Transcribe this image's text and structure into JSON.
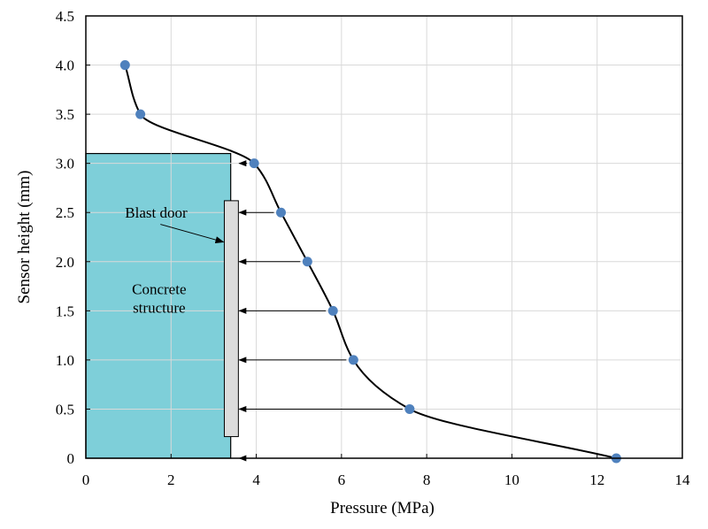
{
  "chart_data": {
    "type": "line",
    "title": "",
    "xlabel": "Pressure (MPa)",
    "ylabel": "Sensor height (mm)",
    "xlim": [
      0,
      14
    ],
    "ylim": [
      0,
      4.5
    ],
    "x_ticks": [
      {
        "value": 0,
        "label": "0"
      },
      {
        "value": 2,
        "label": "2"
      },
      {
        "value": 4,
        "label": "4"
      },
      {
        "value": 6,
        "label": "6"
      },
      {
        "value": 8,
        "label": "8"
      },
      {
        "value": 10,
        "label": "10"
      },
      {
        "value": 12,
        "label": "12"
      },
      {
        "value": 14,
        "label": "14"
      }
    ],
    "y_ticks": [
      {
        "value": 0,
        "label": "0"
      },
      {
        "value": 0.5,
        "label": "0.5"
      },
      {
        "value": 1.0,
        "label": "1.0"
      },
      {
        "value": 1.5,
        "label": "1.5"
      },
      {
        "value": 2.0,
        "label": "2.0"
      },
      {
        "value": 2.5,
        "label": "2.5"
      },
      {
        "value": 3.0,
        "label": "3.0"
      },
      {
        "value": 3.5,
        "label": "3.5"
      },
      {
        "value": 4.0,
        "label": "4.0"
      },
      {
        "value": 4.5,
        "label": "4.5"
      }
    ],
    "grid": true,
    "series": [
      {
        "color": "#4f81bd",
        "points": [
          {
            "x": 0.92,
            "y": 4.0
          },
          {
            "x": 1.28,
            "y": 3.5
          },
          {
            "x": 3.95,
            "y": 3.0
          },
          {
            "x": 4.58,
            "y": 2.5
          },
          {
            "x": 5.2,
            "y": 2.0
          },
          {
            "x": 5.8,
            "y": 1.5
          },
          {
            "x": 6.28,
            "y": 1.0
          },
          {
            "x": 7.6,
            "y": 0.5
          },
          {
            "x": 12.45,
            "y": 0.0
          }
        ]
      }
    ],
    "structure": {
      "label_lines": [
        "Concrete",
        "structure"
      ],
      "x_range": [
        0,
        3.4
      ],
      "y_range": [
        0,
        3.1
      ],
      "color": "#7ecfd9"
    },
    "door": {
      "label": "Blast door",
      "x_range": [
        3.25,
        3.58
      ],
      "y_range": [
        0.22,
        2.62
      ],
      "color": "#dcdcdc"
    },
    "arrows_y": [
      3.0,
      2.5,
      2.0,
      1.5,
      1.0,
      0.5,
      0.0
    ]
  }
}
